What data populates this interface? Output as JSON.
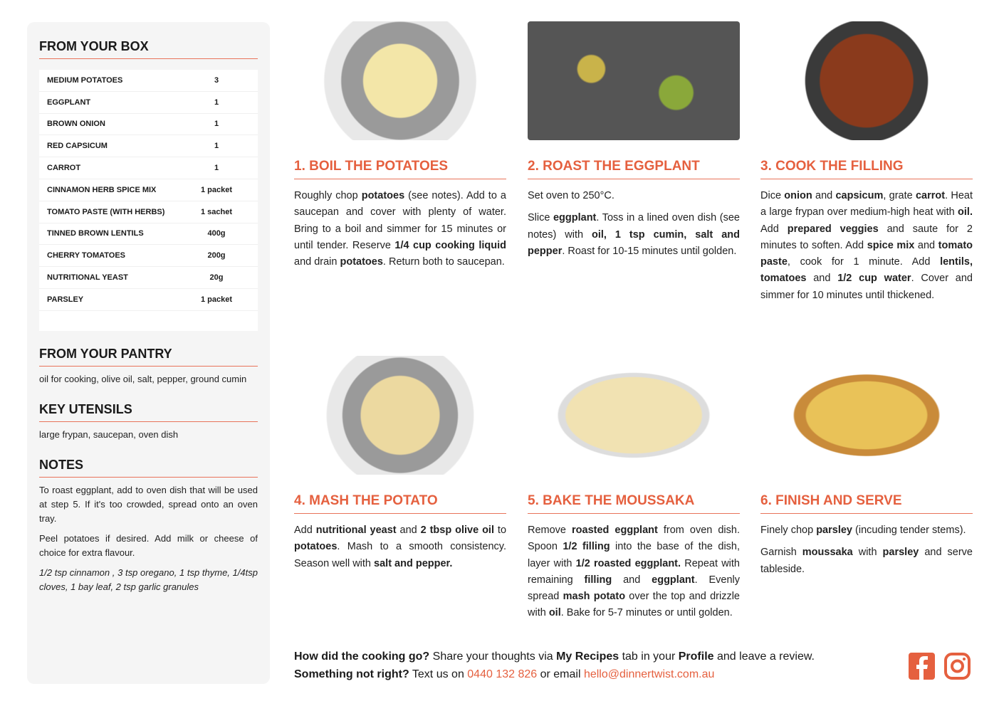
{
  "box": {
    "title": "FROM YOUR BOX",
    "items": [
      {
        "name": "MEDIUM POTATOES",
        "qty": "3"
      },
      {
        "name": "EGGPLANT",
        "qty": "1"
      },
      {
        "name": "BROWN ONION",
        "qty": "1"
      },
      {
        "name": "RED CAPSICUM",
        "qty": "1"
      },
      {
        "name": "CARROT",
        "qty": "1"
      },
      {
        "name": "CINNAMON HERB SPICE MIX",
        "qty": "1 packet"
      },
      {
        "name": "TOMATO PASTE (WITH HERBS)",
        "qty": "1 sachet"
      },
      {
        "name": "TINNED BROWN LENTILS",
        "qty": "400g"
      },
      {
        "name": "CHERRY TOMATOES",
        "qty": "200g"
      },
      {
        "name": "NUTRITIONAL YEAST",
        "qty": "20g"
      },
      {
        "name": "PARSLEY",
        "qty": "1 packet"
      }
    ]
  },
  "pantry": {
    "title": "FROM YOUR PANTRY",
    "text": "oil for cooking, olive oil, salt, pepper, ground cumin"
  },
  "utensils": {
    "title": "KEY UTENSILS",
    "text": "large frypan, saucepan, oven dish"
  },
  "notes": {
    "title": "NOTES",
    "items": [
      "To roast eggplant, add to oven dish that will be used at step 5. If it's too crowded, spread onto an oven tray.",
      "Peel potatoes if desired. Add milk or cheese of choice for extra flavour."
    ],
    "italic": "1/2 tsp cinnamon , 3 tsp oregano, 1 tsp thyme, 1/4tsp cloves, 1 bay leaf, 2 tsp garlic granules"
  },
  "steps": [
    {
      "title": "1. BOIL THE POTATOES",
      "paras": [
        [
          [
            "Roughly chop ",
            0
          ],
          [
            "potatoes",
            1
          ],
          [
            " (see notes). Add to a saucepan and cover with plenty of water. Bring to a boil and simmer for 15 minutes or until tender. Reserve ",
            0
          ],
          [
            "1/4 cup cooking liquid",
            1
          ],
          [
            " and drain ",
            0
          ],
          [
            "potatoes",
            1
          ],
          [
            ". Return both to saucepan.",
            0
          ]
        ]
      ]
    },
    {
      "title": "2. ROAST THE EGGPLANT",
      "paras": [
        [
          [
            "Set oven to 250°C.",
            0
          ]
        ],
        [
          [
            "Slice ",
            0
          ],
          [
            "eggplant",
            1
          ],
          [
            ". Toss in a lined oven dish (see notes) with ",
            0
          ],
          [
            "oil, 1 tsp cumin, salt and pepper",
            1
          ],
          [
            ". Roast for 10-15 minutes until golden.",
            0
          ]
        ]
      ]
    },
    {
      "title": "3. COOK THE FILLING",
      "paras": [
        [
          [
            "Dice ",
            0
          ],
          [
            "onion",
            1
          ],
          [
            " and ",
            0
          ],
          [
            "capsicum",
            1
          ],
          [
            ", grate ",
            0
          ],
          [
            "carrot",
            1
          ],
          [
            ". Heat a large frypan over medium-high heat with ",
            0
          ],
          [
            "oil.",
            1
          ],
          [
            " Add ",
            0
          ],
          [
            "prepared veggies",
            1
          ],
          [
            " and saute for 2 minutes to soften. Add ",
            0
          ],
          [
            "spice mix",
            1
          ],
          [
            " and ",
            0
          ],
          [
            "tomato paste",
            1
          ],
          [
            ", cook for 1 minute. Add ",
            0
          ],
          [
            "lentils, tomatoes",
            1
          ],
          [
            " and ",
            0
          ],
          [
            "1/2 cup water",
            1
          ],
          [
            ". Cover and simmer for 10 minutes until thickened.",
            0
          ]
        ]
      ]
    },
    {
      "title": "4. MASH THE POTATO",
      "paras": [
        [
          [
            "Add ",
            0
          ],
          [
            "nutritional yeast",
            1
          ],
          [
            " and ",
            0
          ],
          [
            "2 tbsp olive oil",
            1
          ],
          [
            " to ",
            0
          ],
          [
            "potatoes",
            1
          ],
          [
            ". Mash to a smooth consistency. Season well with ",
            0
          ],
          [
            "salt and pepper.",
            1
          ]
        ]
      ]
    },
    {
      "title": "5. BAKE THE MOUSSAKA",
      "paras": [
        [
          [
            "Remove ",
            0
          ],
          [
            "roasted eggplant",
            1
          ],
          [
            " from oven dish. Spoon ",
            0
          ],
          [
            "1/2 filling",
            1
          ],
          [
            " into the base of the dish, layer with ",
            0
          ],
          [
            "1/2 roasted eggplant.",
            1
          ],
          [
            " Repeat with remaining ",
            0
          ],
          [
            "filling",
            1
          ],
          [
            " and ",
            0
          ],
          [
            "eggplant",
            1
          ],
          [
            ". Evenly spread ",
            0
          ],
          [
            "mash potato",
            1
          ],
          [
            " over the top and drizzle with ",
            0
          ],
          [
            "oil",
            1
          ],
          [
            ". Bake for 5-7 minutes or until golden.",
            0
          ]
        ]
      ]
    },
    {
      "title": "6. FINISH AND SERVE",
      "paras": [
        [
          [
            "Finely chop ",
            0
          ],
          [
            "parsley",
            1
          ],
          [
            " (incuding tender stems).",
            0
          ]
        ],
        [
          [
            "Garnish ",
            0
          ],
          [
            "moussaka",
            1
          ],
          [
            " with ",
            0
          ],
          [
            "parsley",
            1
          ],
          [
            " and serve tableside.",
            0
          ]
        ]
      ]
    }
  ],
  "footer": {
    "q1": "How did the cooking go?",
    "t1": " Share your thoughts via ",
    "b1": "My Recipes",
    "t2": " tab in your ",
    "b2": "Profile",
    "t3": " and leave a review.",
    "q2": "Something not right?",
    "t4": " Text us on ",
    "phone": "0440 132 826",
    "t5": " or email ",
    "email": "hello@dinnertwist.com.au"
  },
  "social": [
    "facebook-icon",
    "instagram-icon"
  ],
  "colors": {
    "accent": "#e5603f",
    "sidebar": "#f5f5f5"
  }
}
